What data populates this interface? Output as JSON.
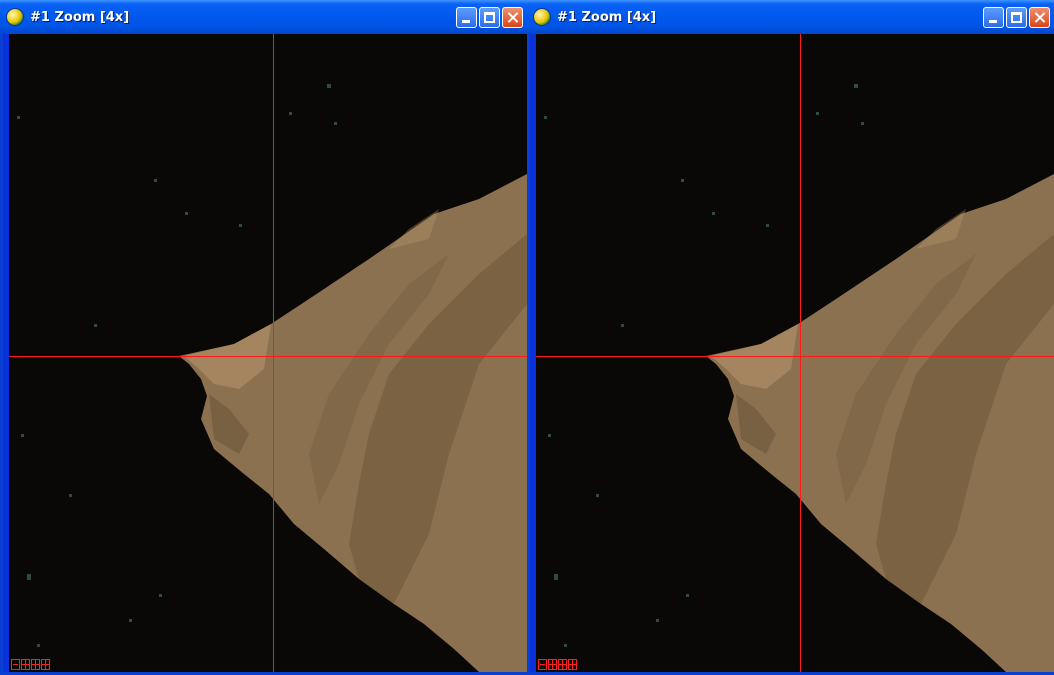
{
  "windows": [
    {
      "title": "#1 Zoom [4x]",
      "zoom_controls": [
        "zoom-out",
        "zoom-in",
        "zoom-1x",
        "crosshair-toggle"
      ]
    },
    {
      "title": "#1 Zoom [4x]",
      "zoom_controls": [
        "zoom-out",
        "zoom-in",
        "zoom-1x",
        "crosshair-toggle"
      ]
    }
  ],
  "colors": {
    "titlebar": "#0058ee",
    "crosshair": "#ff1a1a",
    "water": "#090806",
    "land": "#8c7150"
  },
  "icons": [
    "app-globe-icon",
    "minimize-icon",
    "maximize-icon",
    "close-icon"
  ]
}
